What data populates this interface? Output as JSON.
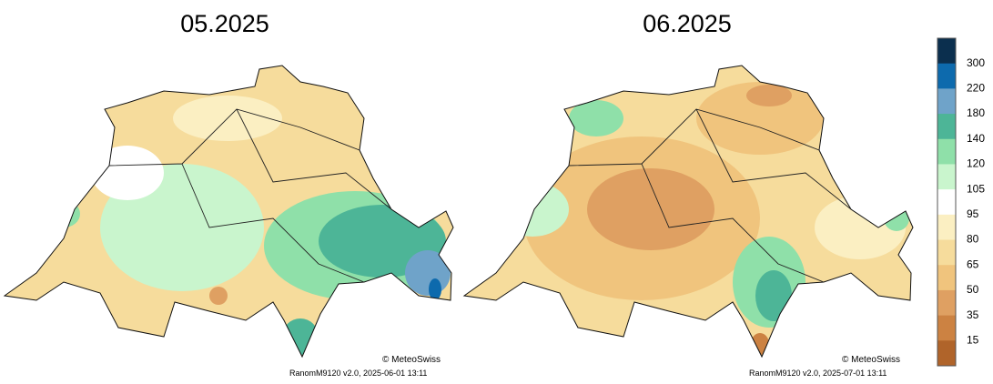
{
  "panels": [
    {
      "title": "05.2025",
      "credit": "© MeteoSwiss",
      "source": "RanomM9120 v2.0, 2025-06-01 13:11"
    },
    {
      "title": "06.2025",
      "credit": "© MeteoSwiss",
      "source": "RanomM9120 v2.0, 2025-07-01 13:11"
    }
  ],
  "legend": {
    "colors": [
      "#0b2f4e",
      "#0d6aad",
      "#6fa3c9",
      "#4db597",
      "#8fe0a9",
      "#c9f5cd",
      "#ffffff",
      "#fbefc2",
      "#f6dc9c",
      "#f0c47d",
      "#dfa062",
      "#cc8242",
      "#b0642a"
    ],
    "ticks": [
      300,
      220,
      180,
      140,
      120,
      105,
      95,
      80,
      65,
      50,
      35,
      15
    ]
  }
}
